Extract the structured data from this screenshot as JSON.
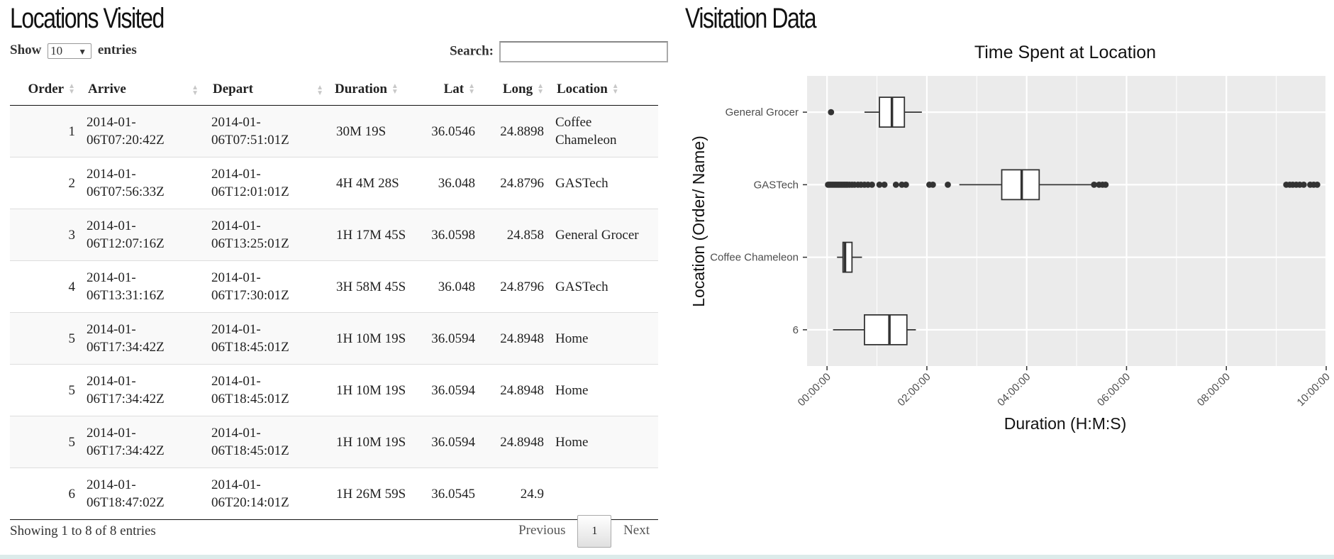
{
  "left": {
    "title": "Locations Visited",
    "show_label": "Show",
    "entries_label": "entries",
    "page_length": "10",
    "search_label": "Search:",
    "search_value": "",
    "columns": [
      "Order",
      "Arrive",
      "Depart",
      "Duration",
      "Lat",
      "Long",
      "Location"
    ],
    "rows": [
      {
        "order": "1",
        "arrive": "2014-01-06T07:20:42Z",
        "depart": "2014-01-06T07:51:01Z",
        "duration": "30M 19S",
        "lat": "36.0546",
        "long": "24.8898",
        "location": "Coffee Chameleon"
      },
      {
        "order": "2",
        "arrive": "2014-01-06T07:56:33Z",
        "depart": "2014-01-06T12:01:01Z",
        "duration": "4H 4M 28S",
        "lat": "36.048",
        "long": "24.8796",
        "location": "GASTech"
      },
      {
        "order": "3",
        "arrive": "2014-01-06T12:07:16Z",
        "depart": "2014-01-06T13:25:01Z",
        "duration": "1H 17M 45S",
        "lat": "36.0598",
        "long": "24.858",
        "location": "General Grocer"
      },
      {
        "order": "4",
        "arrive": "2014-01-06T13:31:16Z",
        "depart": "2014-01-06T17:30:01Z",
        "duration": "3H 58M 45S",
        "lat": "36.048",
        "long": "24.8796",
        "location": "GASTech"
      },
      {
        "order": "5",
        "arrive": "2014-01-06T17:34:42Z",
        "depart": "2014-01-06T18:45:01Z",
        "duration": "1H 10M 19S",
        "lat": "36.0594",
        "long": "24.8948",
        "location": "Home"
      },
      {
        "order": "5",
        "arrive": "2014-01-06T17:34:42Z",
        "depart": "2014-01-06T18:45:01Z",
        "duration": "1H 10M 19S",
        "lat": "36.0594",
        "long": "24.8948",
        "location": "Home"
      },
      {
        "order": "5",
        "arrive": "2014-01-06T17:34:42Z",
        "depart": "2014-01-06T18:45:01Z",
        "duration": "1H 10M 19S",
        "lat": "36.0594",
        "long": "24.8948",
        "location": "Home"
      },
      {
        "order": "6",
        "arrive": "2014-01-06T18:47:02Z",
        "depart": "2014-01-06T20:14:01Z",
        "duration": "1H 26M 59S",
        "lat": "36.0545",
        "long": "24.9",
        "location": ""
      }
    ],
    "info": "Showing 1 to 8 of 8 entries",
    "previous_label": "Previous",
    "current_page": "1",
    "next_label": "Next"
  },
  "right": {
    "title": "Visitation Data"
  },
  "chart_data": {
    "type": "boxplot",
    "title": "Time Spent at Location",
    "xlabel": "Duration (H:M:S)",
    "ylabel": "Location (Order/ Name)",
    "xlim_hours": [
      -0.4,
      10.0
    ],
    "x_ticks_hours": [
      0,
      2,
      4,
      6,
      8,
      10
    ],
    "x_tick_labels": [
      "00:00:00",
      "02:00:00",
      "04:00:00",
      "06:00:00",
      "08:00:00",
      "10:00:00"
    ],
    "grid": true,
    "categories": [
      "General Grocer",
      "GASTech",
      "Coffee Chameleon",
      "6"
    ],
    "boxes": [
      {
        "name": "General Grocer",
        "whisker_low": 0.75,
        "q1": 1.05,
        "median": 1.3,
        "q3": 1.55,
        "whisker_high": 1.9,
        "outliers": [
          0.08
        ]
      },
      {
        "name": "GASTech",
        "whisker_low": 2.65,
        "q1": 3.5,
        "median": 3.9,
        "q3": 4.25,
        "whisker_high": 5.3,
        "outliers": [
          0.02,
          0.05,
          0.08,
          0.11,
          0.14,
          0.17,
          0.2,
          0.23,
          0.26,
          0.29,
          0.32,
          0.35,
          0.38,
          0.41,
          0.45,
          0.5,
          0.55,
          0.62,
          0.68,
          0.75,
          0.82,
          0.9,
          1.05,
          1.15,
          1.38,
          1.5,
          1.58,
          2.05,
          2.12,
          2.42,
          5.35,
          5.45,
          5.52,
          5.58,
          9.2,
          9.27,
          9.33,
          9.4,
          9.47,
          9.55,
          9.68,
          9.75,
          9.82
        ]
      },
      {
        "name": "Coffee Chameleon",
        "whisker_low": 0.2,
        "q1": 0.32,
        "median": 0.36,
        "q3": 0.5,
        "whisker_high": 0.7,
        "outliers": []
      },
      {
        "name": "6",
        "whisker_low": 0.12,
        "q1": 0.75,
        "median": 1.25,
        "q3": 1.6,
        "whisker_high": 1.78,
        "outliers": []
      }
    ],
    "colors": {
      "panel": "#ebebeb",
      "grid": "#ffffff",
      "box_fill": "#ffffff",
      "line": "#333333"
    }
  }
}
